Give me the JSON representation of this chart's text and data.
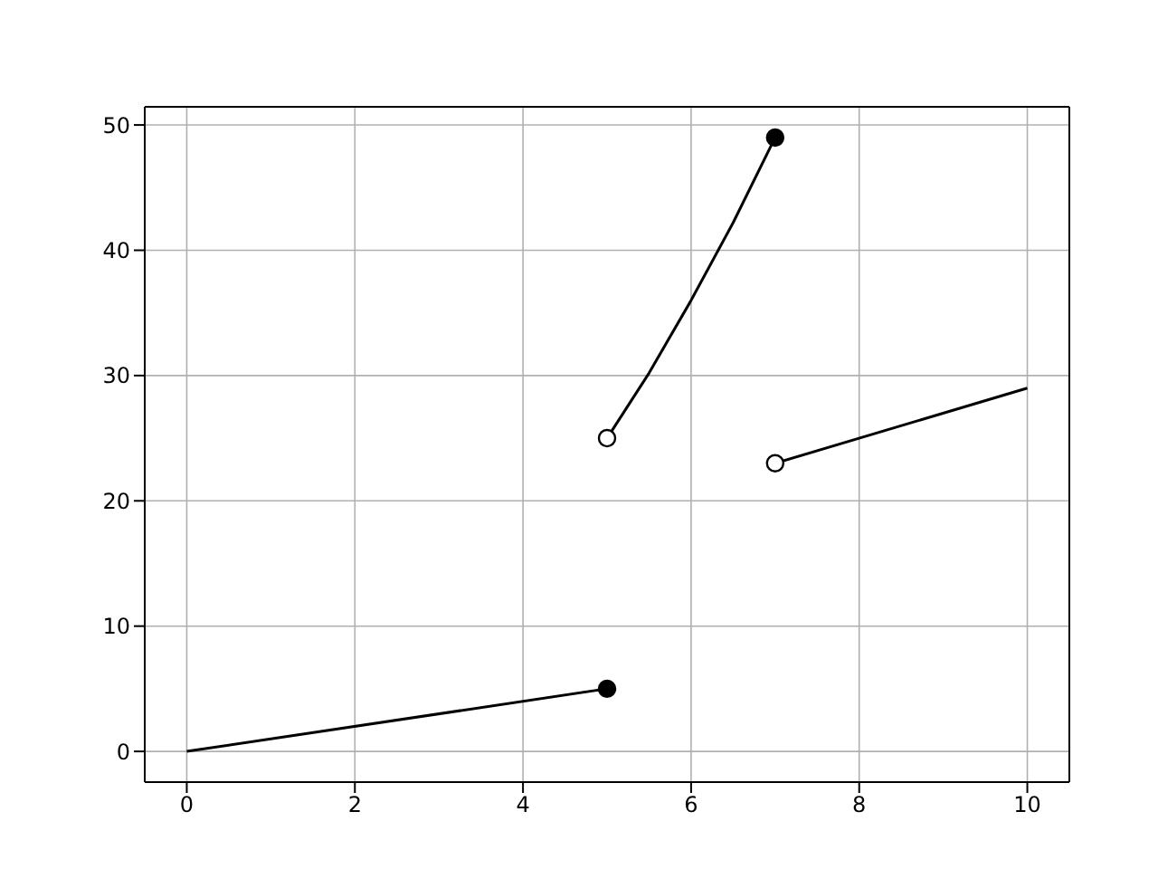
{
  "chart_data": {
    "type": "line",
    "xlim": [
      -0.5,
      10.5
    ],
    "ylim": [
      -2.45,
      51.45
    ],
    "xticks": [
      0,
      2,
      4,
      6,
      8,
      10
    ],
    "yticks": [
      0,
      10,
      20,
      30,
      40,
      50
    ],
    "grid": true,
    "series": [
      {
        "color": "#000000",
        "x": [
          0,
          5
        ],
        "values": [
          0,
          5
        ]
      },
      {
        "color": "#000000",
        "x": [
          5,
          5.5,
          6,
          6.5,
          7
        ],
        "values": [
          25,
          30.2,
          36,
          42.2,
          49
        ]
      },
      {
        "color": "#000000",
        "x": [
          7,
          10
        ],
        "values": [
          23,
          29
        ]
      },
      {
        "type": "scatter",
        "color": "#000000",
        "marker": "circle",
        "x": [
          5,
          7
        ],
        "values": [
          5,
          49
        ]
      },
      {
        "type": "scatter",
        "color": "#ffffff",
        "marker": "circle",
        "x": [
          5,
          7
        ],
        "values": [
          25,
          23
        ]
      }
    ]
  }
}
